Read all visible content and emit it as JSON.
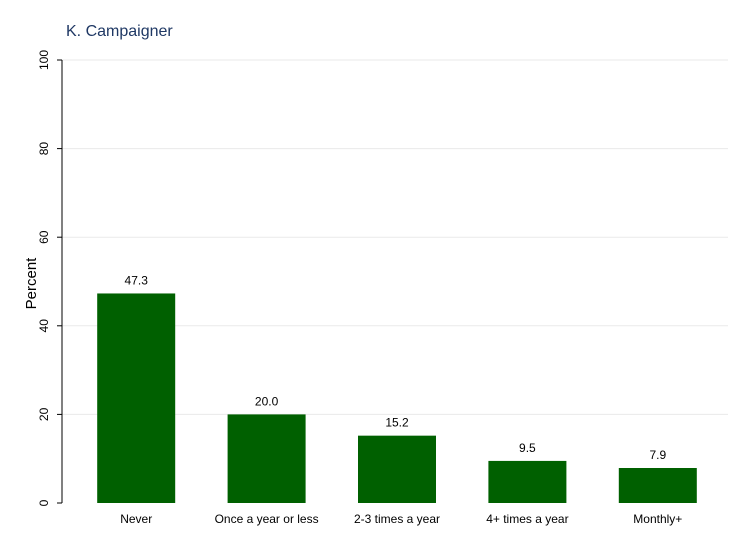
{
  "chart_data": {
    "type": "bar",
    "title": "K. Campaigner",
    "ylabel": "Percent",
    "xlabel": "",
    "categories": [
      "Never",
      "Once a year or less",
      "2-3 times a year",
      "4+ times a year",
      "Monthly+"
    ],
    "values": [
      47.3,
      20.0,
      15.2,
      9.5,
      7.9
    ],
    "data_labels": [
      "47.3",
      "20.0",
      "15.2",
      "9.5",
      "7.9"
    ],
    "ylim": [
      0,
      100
    ],
    "yticks": [
      0,
      20,
      40,
      60,
      80,
      100
    ],
    "grid": true,
    "bar_color": "#006000"
  }
}
